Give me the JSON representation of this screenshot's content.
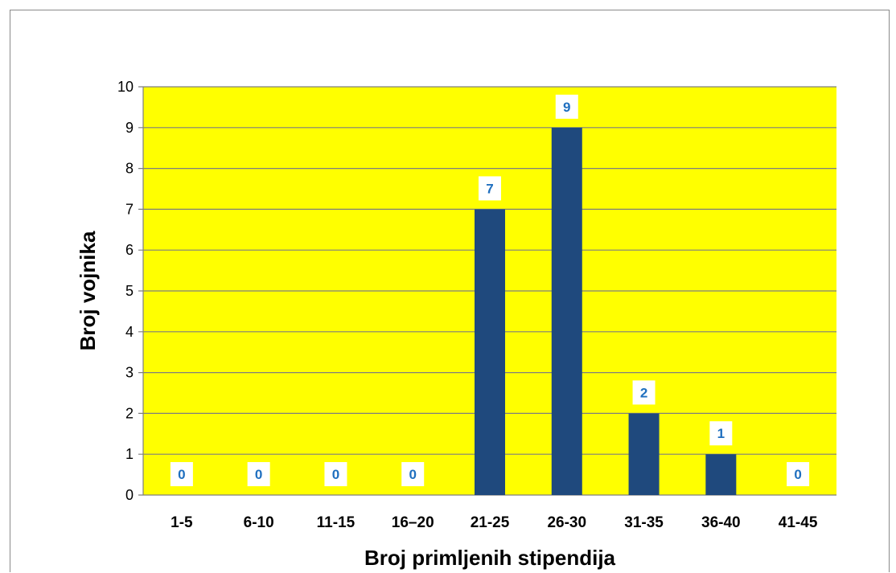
{
  "chart_data": {
    "type": "bar",
    "categories": [
      "1-5",
      "6-10",
      "11-15",
      "16–20",
      "21-25",
      "26-30",
      "31-35",
      "36-40",
      "41-45"
    ],
    "values": [
      0,
      0,
      0,
      0,
      7,
      9,
      2,
      1,
      0
    ],
    "xlabel": "Broj primljenih stipendija",
    "ylabel": "Broj vojnika",
    "ylim": [
      0,
      10
    ],
    "yticks": [
      0,
      1,
      2,
      3,
      4,
      5,
      6,
      7,
      8,
      9,
      10
    ],
    "grid": true,
    "legend": "none",
    "data_labels": true,
    "colors": {
      "plot_background": "#ffff00",
      "bar": "#1f497d",
      "data_label_text": "#1f6fbf",
      "data_label_box": "#ffffff",
      "gridline": "#7f7f7f"
    }
  }
}
